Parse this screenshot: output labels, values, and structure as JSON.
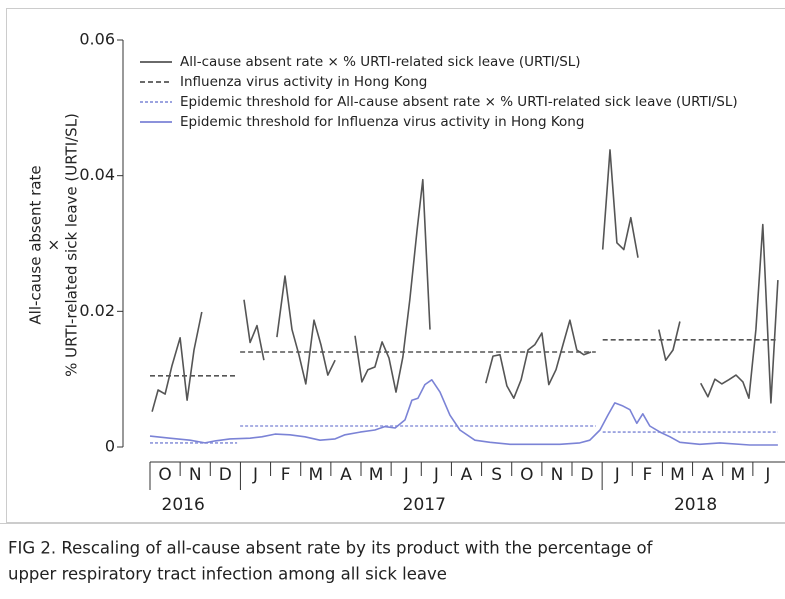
{
  "chart_data": {
    "type": "line",
    "y_label": [
      "All-cause absent rate",
      "×",
      "% URTI-related sick leave (URTI/SL)"
    ],
    "caption": [
      "FIG 2.  Rescaling of all-cause absent rate by its product with the percentage of",
      "upper respiratory tract infection among all sick leave"
    ],
    "xlim": [
      0,
      21
    ],
    "xticks": [
      {
        "value": 0.5,
        "label": "O"
      },
      {
        "value": 1.5,
        "label": "N"
      },
      {
        "value": 2.5,
        "label": "D"
      },
      {
        "value": 3.5,
        "label": "J"
      },
      {
        "value": 4.5,
        "label": "F"
      },
      {
        "value": 5.5,
        "label": "M"
      },
      {
        "value": 6.5,
        "label": "A"
      },
      {
        "value": 7.5,
        "label": "M"
      },
      {
        "value": 8.5,
        "label": "J"
      },
      {
        "value": 9.5,
        "label": "J"
      },
      {
        "value": 10.5,
        "label": "A"
      },
      {
        "value": 11.5,
        "label": "S"
      },
      {
        "value": 12.5,
        "label": "O"
      },
      {
        "value": 13.5,
        "label": "N"
      },
      {
        "value": 14.5,
        "label": "D"
      },
      {
        "value": 15.5,
        "label": "J"
      },
      {
        "value": 16.5,
        "label": "F"
      },
      {
        "value": 17.5,
        "label": "M"
      },
      {
        "value": 18.5,
        "label": "A"
      },
      {
        "value": 19.5,
        "label": "M"
      },
      {
        "value": 20.5,
        "label": "J"
      }
    ],
    "year_labels": [
      {
        "value": 1.1,
        "label": "2016"
      },
      {
        "value": 9.1,
        "label": "2017"
      },
      {
        "value": 18.1,
        "label": "2018"
      }
    ],
    "ylim": [
      0,
      0.06
    ],
    "yticks": [
      0,
      0.02,
      0.04,
      0.06
    ],
    "series": [
      {
        "name": "All-cause absent rate × % URTI-related sick leave (URTI/SL)",
        "color": "#555555",
        "dash": "none",
        "x": [
          0.07,
          0.27,
          0.5,
          0.73,
          1.0,
          1.23,
          1.46,
          1.72,
          null,
          3.12,
          3.32,
          3.55,
          3.78,
          null,
          4.21,
          4.48,
          4.71,
          4.94,
          5.17,
          5.44,
          5.67,
          5.9,
          6.14,
          null,
          6.8,
          7.03,
          7.23,
          7.46,
          7.7,
          7.93,
          8.16,
          8.39,
          8.62,
          8.86,
          9.05,
          9.29,
          null,
          11.14,
          11.38,
          11.61,
          11.84,
          12.07,
          12.31,
          12.54,
          12.77,
          13.0,
          13.23,
          13.47,
          13.7,
          13.93,
          14.16,
          14.39,
          14.63,
          null,
          15.02,
          15.26,
          15.49,
          15.72,
          15.95,
          16.19,
          null,
          16.88,
          17.11,
          17.35,
          17.58,
          null,
          18.27,
          18.51,
          18.74,
          18.97,
          19.2,
          19.44,
          19.67,
          19.87,
          20.1,
          20.33,
          20.6,
          20.83
        ],
        "values": [
          0.0052,
          0.0084,
          0.0078,
          0.012,
          0.0161,
          0.0069,
          0.0143,
          0.0199,
          null,
          0.0217,
          0.0154,
          0.0179,
          0.0128,
          null,
          0.0162,
          0.0252,
          0.0173,
          0.0136,
          0.0093,
          0.0187,
          0.0151,
          0.0106,
          0.0128,
          null,
          0.0164,
          0.0096,
          0.0114,
          0.0118,
          0.0155,
          0.0131,
          0.0081,
          0.0133,
          0.0217,
          0.032,
          0.0394,
          0.0173,
          null,
          0.0094,
          0.0134,
          0.0136,
          0.009,
          0.0072,
          0.0099,
          0.0143,
          0.0151,
          0.0168,
          0.0092,
          0.0114,
          0.0151,
          0.0187,
          0.0143,
          0.0136,
          0.014,
          null,
          0.0291,
          0.0438,
          0.0301,
          0.0291,
          0.0338,
          0.0279,
          null,
          0.0173,
          0.0128,
          0.0143,
          0.0185,
          null,
          0.0094,
          0.0074,
          0.01,
          0.0093,
          0.0099,
          0.0106,
          0.0096,
          0.0072,
          0.0173,
          0.0328,
          0.0065,
          0.0246
        ]
      },
      {
        "name": "Influenza virus activity in Hong Kong",
        "color": "#555555",
        "dash": "5,3",
        "x": [
          0,
          2.89,
          null,
          2.99,
          14.79,
          null,
          15.02,
          20.83
        ],
        "values": [
          0.0105,
          0.0105,
          null,
          0.014,
          0.014,
          null,
          0.0158,
          0.0158
        ]
      },
      {
        "name": "Epidemic threshold for All-cause absent rate × % URTI-related sick leave (URTI/SL)",
        "color": "#8f97dc",
        "dash": "3,2",
        "x": [
          0,
          2.89,
          null,
          2.99,
          14.79,
          null,
          15.02,
          20.83
        ],
        "values": [
          0.0006,
          0.0006,
          null,
          0.0031,
          0.0031,
          null,
          0.0022,
          0.0022
        ]
      },
      {
        "name": "Epidemic threshold for Influenza virus activity in Hong Kong",
        "color": "#7b83d6",
        "dash": "none",
        "x": [
          0,
          0.66,
          1.33,
          1.82,
          2.16,
          2.65,
          3.32,
          3.71,
          4.15,
          4.64,
          5.14,
          5.64,
          6.14,
          6.47,
          6.97,
          7.46,
          7.79,
          8.13,
          8.46,
          8.69,
          8.89,
          9.12,
          9.35,
          9.62,
          9.95,
          10.28,
          10.78,
          11.28,
          11.94,
          12.6,
          13.6,
          14.26,
          14.59,
          14.93,
          15.19,
          15.42,
          15.66,
          15.92,
          16.15,
          16.35,
          16.58,
          16.92,
          17.25,
          17.58,
          18.24,
          18.91,
          19.9,
          20.83
        ],
        "values": [
          0.0016,
          0.0013,
          0.001,
          0.0006,
          0.0009,
          0.0012,
          0.0013,
          0.0015,
          0.0019,
          0.0018,
          0.0015,
          0.001,
          0.0012,
          0.0018,
          0.0022,
          0.0025,
          0.003,
          0.0028,
          0.004,
          0.0069,
          0.0072,
          0.0092,
          0.0099,
          0.0081,
          0.0047,
          0.0025,
          0.001,
          0.0007,
          0.0004,
          0.0004,
          0.0004,
          0.0006,
          0.001,
          0.0025,
          0.0047,
          0.0065,
          0.0061,
          0.0055,
          0.0035,
          0.0049,
          0.0031,
          0.0022,
          0.0015,
          0.0007,
          0.0004,
          0.0006,
          0.0003,
          0.0003
        ]
      }
    ]
  }
}
